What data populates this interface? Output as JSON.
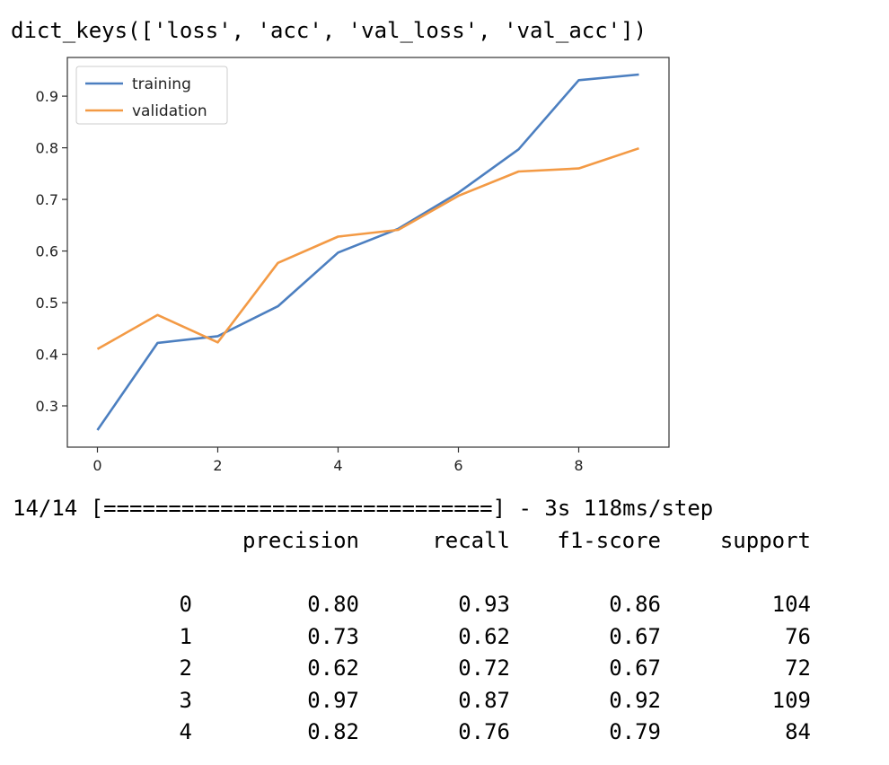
{
  "output": {
    "dict_keys_line": "dict_keys(['loss', 'acc', 'val_loss', 'val_acc'])",
    "progress_line": "14/14 [==============================] - 3s 118ms/step"
  },
  "report": {
    "headers": [
      "precision",
      "recall",
      "f1-score",
      "support"
    ],
    "rows": [
      {
        "label": "0",
        "precision": "0.80",
        "recall": "0.93",
        "f1": "0.86",
        "support": "104"
      },
      {
        "label": "1",
        "precision": "0.73",
        "recall": "0.62",
        "f1": "0.67",
        "support": "76"
      },
      {
        "label": "2",
        "precision": "0.62",
        "recall": "0.72",
        "f1": "0.67",
        "support": "72"
      },
      {
        "label": "3",
        "precision": "0.97",
        "recall": "0.87",
        "f1": "0.92",
        "support": "109"
      },
      {
        "label": "4",
        "precision": "0.82",
        "recall": "0.76",
        "f1": "0.79",
        "support": "84"
      }
    ]
  },
  "chart_data": {
    "type": "line",
    "x": [
      0,
      1,
      2,
      3,
      4,
      5,
      6,
      7,
      8,
      9
    ],
    "series": [
      {
        "name": "training",
        "color": "#4c7fc0",
        "values": [
          0.253,
          0.422,
          0.435,
          0.493,
          0.597,
          0.643,
          0.713,
          0.797,
          0.931,
          0.942
        ]
      },
      {
        "name": "validation",
        "color": "#f39a45",
        "values": [
          0.41,
          0.476,
          0.423,
          0.577,
          0.628,
          0.641,
          0.707,
          0.754,
          0.76,
          0.799
        ]
      }
    ],
    "xlim": [
      -0.5,
      9.5
    ],
    "ylim": [
      0.22,
      0.975
    ],
    "xticks": [
      0,
      2,
      4,
      6,
      8
    ],
    "yticks": [
      0.3,
      0.4,
      0.5,
      0.6,
      0.7,
      0.8,
      0.9
    ],
    "title": "",
    "xlabel": "",
    "ylabel": "",
    "grid": false,
    "legend": "upper left"
  }
}
